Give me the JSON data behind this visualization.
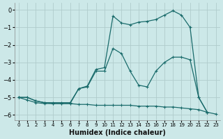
{
  "xlabel": "Humidex (Indice chaleur)",
  "bg_color": "#cce8e8",
  "grid_color": "#b0cccc",
  "line_color": "#1a6b6b",
  "xlim": [
    -0.5,
    23.5
  ],
  "ylim": [
    -6.3,
    0.4
  ],
  "yticks": [
    0,
    -1,
    -2,
    -3,
    -4,
    -5,
    -6
  ],
  "xticks": [
    0,
    1,
    2,
    3,
    4,
    5,
    6,
    7,
    8,
    9,
    10,
    11,
    12,
    13,
    14,
    15,
    16,
    17,
    18,
    19,
    20,
    21,
    22,
    23
  ],
  "line_top_x": [
    0,
    1,
    2,
    3,
    4,
    5,
    6,
    7,
    8,
    9,
    10,
    11,
    12,
    13,
    14,
    15,
    16,
    17,
    18,
    19,
    20,
    21,
    22
  ],
  "line_top_y": [
    -5.0,
    -5.0,
    -5.2,
    -5.3,
    -5.35,
    -5.35,
    -5.35,
    -4.5,
    -4.35,
    -3.4,
    -3.3,
    -0.35,
    -0.75,
    -0.85,
    -0.7,
    -0.65,
    -0.55,
    -0.3,
    -0.05,
    -0.3,
    -1.0,
    -5.0,
    -5.85
  ],
  "line_mid_x": [
    0,
    1,
    2,
    3,
    4,
    5,
    6,
    7,
    8,
    9,
    10,
    11,
    12,
    13,
    14,
    15,
    16,
    17,
    18,
    19,
    20,
    21,
    22
  ],
  "line_mid_y": [
    -5.0,
    -5.0,
    -5.2,
    -5.3,
    -5.3,
    -5.3,
    -5.3,
    -4.5,
    -4.4,
    -3.5,
    -3.5,
    -2.2,
    -2.5,
    -3.5,
    -4.3,
    -4.4,
    -3.5,
    -3.0,
    -2.7,
    -2.7,
    -2.85,
    -5.0,
    -5.85
  ],
  "line_bot_x": [
    0,
    1,
    2,
    3,
    4,
    5,
    6,
    7,
    8,
    9,
    10,
    11,
    12,
    13,
    14,
    15,
    16,
    17,
    18,
    19,
    20,
    21,
    22,
    23
  ],
  "line_bot_y": [
    -5.0,
    -5.15,
    -5.3,
    -5.35,
    -5.35,
    -5.35,
    -5.35,
    -5.4,
    -5.4,
    -5.45,
    -5.45,
    -5.45,
    -5.45,
    -5.45,
    -5.5,
    -5.5,
    -5.5,
    -5.55,
    -5.55,
    -5.6,
    -5.65,
    -5.7,
    -5.85,
    -5.95
  ]
}
